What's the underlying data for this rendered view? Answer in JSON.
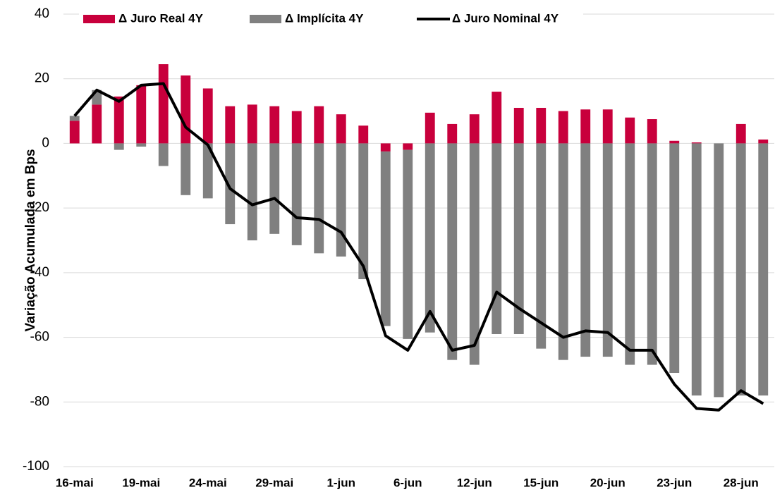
{
  "chart_data": {
    "type": "bar",
    "stacked": true,
    "y_label": "Variação Acumulada em Bps",
    "categories": [
      "16-mai",
      null,
      null,
      "19-mai",
      null,
      null,
      "24-mai",
      null,
      null,
      "29-mai",
      null,
      null,
      "1-jun",
      null,
      null,
      "6-jun",
      null,
      null,
      "12-jun",
      null,
      null,
      "15-jun",
      null,
      null,
      "20-jun",
      null,
      null,
      "23-jun",
      null,
      null,
      "28-jun",
      null
    ],
    "series": [
      {
        "name": "Δ Juro Real 4Y",
        "type": "bar",
        "color": "#c8003c",
        "values": [
          7,
          12,
          14.5,
          18,
          24.5,
          21,
          17,
          11.5,
          12,
          11.5,
          10,
          11.5,
          9,
          5.5,
          -2.5,
          -2,
          9.5,
          6,
          9,
          16,
          11,
          11,
          10,
          10.5,
          10.5,
          8,
          7.5,
          0.8,
          0.3,
          0,
          6,
          1.2
        ]
      },
      {
        "name": "Δ Implícita 4Y",
        "type": "bar",
        "color": "#808080",
        "values": [
          1.5,
          4.5,
          -2,
          -1,
          -7,
          -16,
          -17,
          -25,
          -30,
          -28,
          -31.5,
          -34,
          -35,
          -42,
          -54,
          -58.5,
          -58.5,
          -67,
          -68.5,
          -59,
          -59,
          -63.5,
          -67,
          -66,
          -66,
          -68.5,
          -68.5,
          -71,
          -78,
          -78.5,
          -78,
          -78
        ]
      },
      {
        "name": "Δ Juro Nominal 4Y",
        "type": "line",
        "color": "#000000",
        "values": [
          8.5,
          16.5,
          13,
          18,
          18.5,
          5,
          -0.5,
          -14,
          -19,
          -17,
          -23,
          -23.5,
          -27.5,
          -38,
          -59.5,
          -64,
          -52,
          -64,
          -62.5,
          -46,
          -51,
          -55.5,
          -60,
          -58,
          -58.5,
          -64,
          -64,
          -74.5,
          -82,
          -82.5,
          -76.5,
          -80.5
        ]
      }
    ],
    "ylim": [
      -100,
      40
    ],
    "yticks": [
      -100,
      -80,
      -60,
      -40,
      -20,
      0,
      20,
      40
    ],
    "grid": true,
    "legend": "top"
  }
}
